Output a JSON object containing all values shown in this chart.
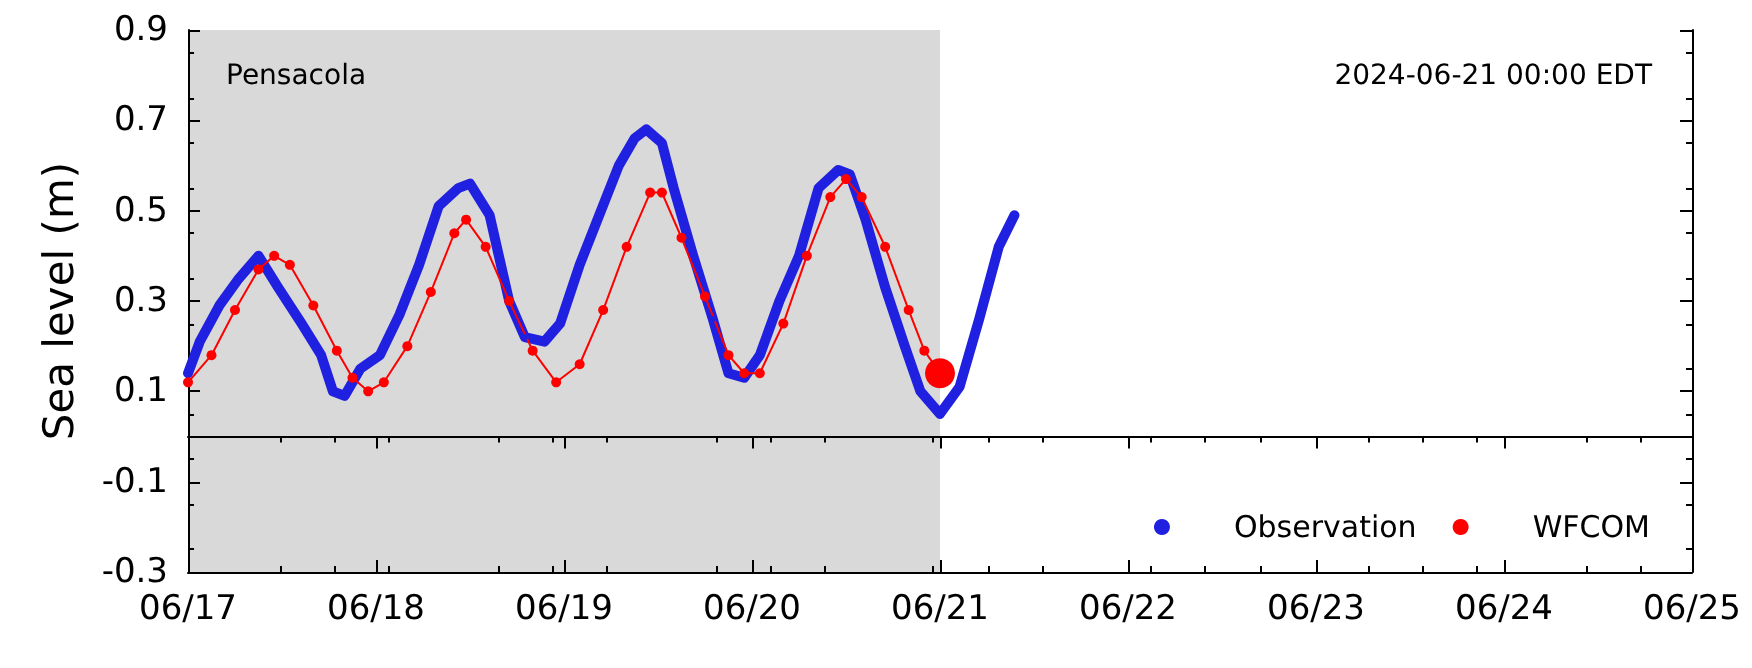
{
  "chart_data": {
    "type": "line",
    "ylabel": "Sea level (m)",
    "annotations": [
      "Pensacola",
      "2024-06-21 00:00 EDT"
    ],
    "xlim": [
      "2024-06-17",
      "2024-06-25"
    ],
    "xticks": [
      {
        "value": "2024-06-17",
        "label": "06/17"
      },
      {
        "value": "2024-06-18",
        "label": "06/18"
      },
      {
        "value": "2024-06-19",
        "label": "06/19"
      },
      {
        "value": "2024-06-20",
        "label": "06/20"
      },
      {
        "value": "2024-06-21",
        "label": "06/21"
      },
      {
        "value": "2024-06-22",
        "label": "06/22"
      },
      {
        "value": "2024-06-23",
        "label": "06/23"
      },
      {
        "value": "2024-06-24",
        "label": "06/24"
      },
      {
        "value": "2024-06-25",
        "label": "06/25"
      }
    ],
    "ylim": [
      -0.3,
      0.9
    ],
    "yticks": [
      -0.3,
      -0.1,
      0.1,
      0.3,
      0.5,
      0.7,
      0.9
    ],
    "grid": false,
    "legend": "bottom right",
    "marker": "circle",
    "bands": [
      {
        "axis": "x",
        "from": "2024-06-17",
        "to": "2024-06-21",
        "color": "#d9d9d9"
      }
    ],
    "series": [
      {
        "name": "Observation",
        "color": "#2020e0",
        "x": [
          "2024-06-17T00:00",
          "2024-06-17T01:30",
          "2024-06-17T04:00",
          "2024-06-17T06:30",
          "2024-06-17T09:00",
          "2024-06-17T11:30",
          "2024-06-17T14:30",
          "2024-06-17T17:00",
          "2024-06-17T18:30",
          "2024-06-17T20:00",
          "2024-06-17T22:00",
          "2024-06-18T00:30",
          "2024-06-18T03:00",
          "2024-06-18T05:30",
          "2024-06-18T08:00",
          "2024-06-18T10:30",
          "2024-06-18T12:00",
          "2024-06-18T14:30",
          "2024-06-18T17:00",
          "2024-06-18T19:00",
          "2024-06-18T21:30",
          "2024-06-18T23:30",
          "2024-06-19T02:00",
          "2024-06-19T04:30",
          "2024-06-19T07:00",
          "2024-06-19T09:00",
          "2024-06-19T10:30",
          "2024-06-19T12:30",
          "2024-06-19T14:00",
          "2024-06-19T16:30",
          "2024-06-19T19:00",
          "2024-06-19T21:00",
          "2024-06-19T23:00",
          "2024-06-20T01:00",
          "2024-06-20T03:30",
          "2024-06-20T06:00",
          "2024-06-20T08:30",
          "2024-06-20T11:00",
          "2024-06-20T12:30",
          "2024-06-20T14:30",
          "2024-06-20T17:00",
          "2024-06-20T19:30",
          "2024-06-20T21:30",
          "2024-06-21T00:00",
          "2024-06-21T02:30",
          "2024-06-21T05:00",
          "2024-06-21T07:30",
          "2024-06-21T09:30"
        ],
        "values": [
          0.14,
          0.21,
          0.29,
          0.35,
          0.4,
          0.33,
          0.25,
          0.18,
          0.1,
          0.09,
          0.15,
          0.18,
          0.27,
          0.38,
          0.51,
          0.55,
          0.56,
          0.49,
          0.3,
          0.22,
          0.21,
          0.25,
          0.38,
          0.49,
          0.6,
          0.66,
          0.68,
          0.65,
          0.55,
          0.4,
          0.26,
          0.14,
          0.13,
          0.18,
          0.3,
          0.4,
          0.55,
          0.59,
          0.58,
          0.48,
          0.33,
          0.2,
          0.1,
          0.05,
          0.11,
          0.26,
          0.42,
          0.49
        ]
      },
      {
        "name": "WFCOM",
        "color": "#ff0000",
        "x": [
          "2024-06-17T00:00",
          "2024-06-17T03:00",
          "2024-06-17T06:00",
          "2024-06-17T09:00",
          "2024-06-17T11:00",
          "2024-06-17T13:00",
          "2024-06-17T16:00",
          "2024-06-17T19:00",
          "2024-06-17T21:00",
          "2024-06-17T23:00",
          "2024-06-18T01:00",
          "2024-06-18T04:00",
          "2024-06-18T07:00",
          "2024-06-18T10:00",
          "2024-06-18T11:30",
          "2024-06-18T14:00",
          "2024-06-18T17:00",
          "2024-06-18T20:00",
          "2024-06-18T23:00",
          "2024-06-19T02:00",
          "2024-06-19T05:00",
          "2024-06-19T08:00",
          "2024-06-19T11:00",
          "2024-06-19T12:30",
          "2024-06-19T15:00",
          "2024-06-19T18:00",
          "2024-06-19T21:00",
          "2024-06-19T23:00",
          "2024-06-20T01:00",
          "2024-06-20T04:00",
          "2024-06-20T07:00",
          "2024-06-20T10:00",
          "2024-06-20T12:00",
          "2024-06-20T14:00",
          "2024-06-20T17:00",
          "2024-06-20T20:00",
          "2024-06-20T22:00",
          "2024-06-21T00:00"
        ],
        "values": [
          0.12,
          0.18,
          0.28,
          0.37,
          0.4,
          0.38,
          0.29,
          0.19,
          0.13,
          0.1,
          0.12,
          0.2,
          0.32,
          0.45,
          0.48,
          0.42,
          0.3,
          0.19,
          0.12,
          0.16,
          0.28,
          0.42,
          0.54,
          0.54,
          0.44,
          0.31,
          0.18,
          0.14,
          0.14,
          0.25,
          0.4,
          0.53,
          0.57,
          0.53,
          0.42,
          0.28,
          0.19,
          0.14
        ]
      },
      {
        "type": "scatter",
        "color": "#ff0000",
        "x": [
          "2024-06-21T00:00"
        ],
        "values": [
          0.14
        ]
      }
    ]
  }
}
